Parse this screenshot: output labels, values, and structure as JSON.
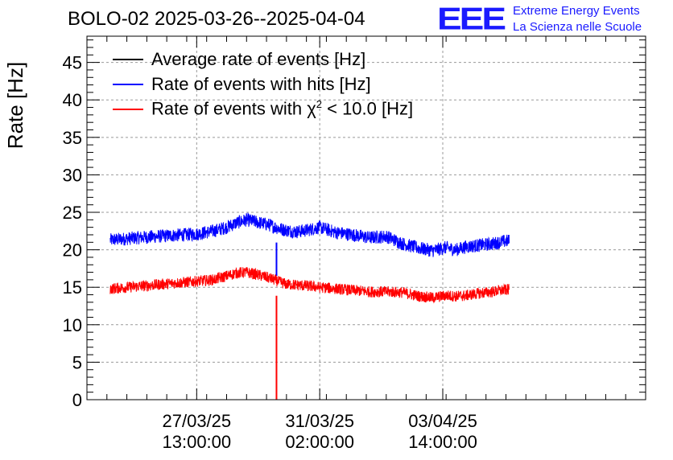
{
  "chart_data": {
    "type": "line",
    "title": "BOLO-02 2025-03-26--2025-04-04",
    "ylabel": "Rate [Hz]",
    "xlabel": "",
    "ylim": [
      0,
      48.5
    ],
    "yticks": [
      0,
      5,
      10,
      15,
      20,
      25,
      30,
      35,
      40,
      45
    ],
    "xlim_hours": [
      0,
      168
    ],
    "x_tick_labels": [
      {
        "hour": 33,
        "date": "27/03/25",
        "time": "13:00:00"
      },
      {
        "hour": 70,
        "date": "31/03/25",
        "time": "02:00:00"
      },
      {
        "hour": 107,
        "date": "03/04/25",
        "time": "14:00:00"
      }
    ],
    "grid": true,
    "legend_position": "top-left",
    "series": [
      {
        "name": "Average rate of events [Hz]",
        "color": "#000000",
        "values": []
      },
      {
        "name": "Rate of events with hits [Hz]",
        "color": "#0000ff",
        "noise": 0.9,
        "x": [
          7,
          15,
          25,
          33,
          38,
          42,
          45,
          48,
          52,
          55,
          58,
          60,
          63,
          66,
          70,
          75,
          80,
          85,
          90,
          95,
          100,
          104,
          108,
          111,
          114,
          118,
          122,
          125,
          127
        ],
        "values": [
          21.3,
          21.6,
          21.9,
          22.1,
          22.5,
          23.0,
          23.6,
          24.0,
          23.6,
          23.3,
          22.8,
          22.6,
          22.4,
          22.6,
          23.0,
          22.3,
          22.0,
          21.6,
          21.8,
          20.8,
          20.2,
          19.9,
          20.3,
          20.0,
          20.4,
          20.6,
          20.8,
          21.1,
          21.2
        ],
        "dip": {
          "x": 57,
          "min": 16.5
        }
      },
      {
        "name": "Rate of events with χ² < 10.0 [Hz]",
        "color": "#ff0000",
        "noise": 0.75,
        "x": [
          7,
          15,
          25,
          33,
          38,
          42,
          45,
          48,
          52,
          55,
          58,
          60,
          63,
          66,
          70,
          75,
          80,
          85,
          90,
          95,
          100,
          104,
          108,
          111,
          114,
          118,
          122,
          125,
          127
        ],
        "values": [
          14.8,
          15.1,
          15.5,
          15.8,
          16.0,
          16.5,
          16.9,
          17.0,
          16.6,
          16.2,
          15.7,
          15.4,
          15.3,
          15.2,
          15.0,
          14.8,
          14.6,
          14.4,
          14.4,
          14.3,
          13.8,
          13.6,
          13.9,
          13.8,
          13.9,
          14.2,
          14.4,
          14.6,
          14.7
        ],
        "dip": {
          "x": 57,
          "min": 0
        }
      }
    ]
  },
  "logo": {
    "mark": "EEE",
    "line1": "Extreme Energy Events",
    "line2": "La Scienza nelle Scuole"
  },
  "legend": {
    "items": [
      {
        "pre": "Average rate of events [Hz]",
        "sup": "",
        "post": "",
        "color": "#000000"
      },
      {
        "pre": "Rate of events with hits [Hz]",
        "sup": "",
        "post": "",
        "color": "#0000ff"
      },
      {
        "pre": "Rate of events with χ",
        "sup": "2",
        "post": " < 10.0 [Hz]",
        "color": "#ff0000"
      }
    ]
  }
}
